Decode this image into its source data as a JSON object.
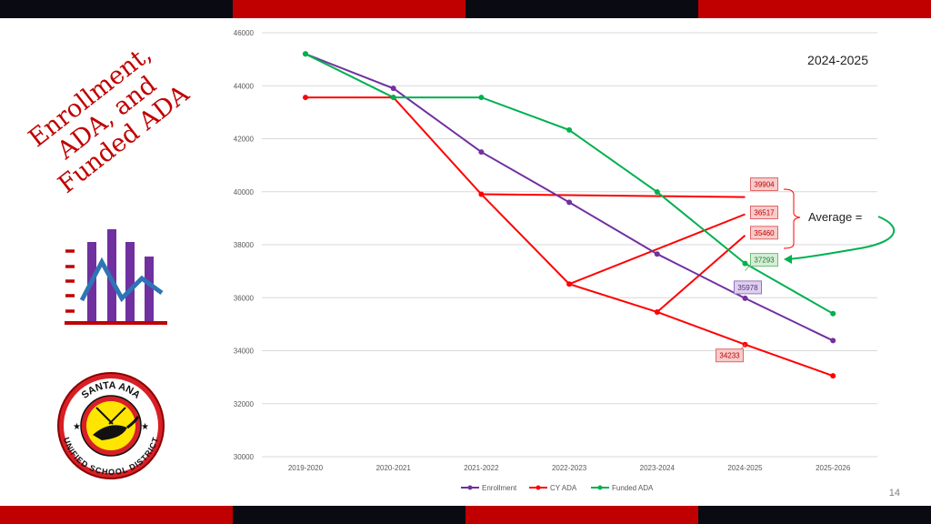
{
  "slide": {
    "title": "Enrollment,\nADA, and\nFunded ADA",
    "page_number": "14",
    "year_label": "2024-2025",
    "average_label": "Average =",
    "colors": {
      "black": "#0a0a12",
      "red": "#c00000"
    },
    "logo": {
      "name": "Santa Ana Unified School District seal",
      "top_text": "SANTA ANA",
      "bottom_text": "UNIFIED SCHOOL DISTRICT"
    }
  },
  "chart_data": {
    "type": "line",
    "categories": [
      "2019-2020",
      "2020-2021",
      "2021-2022",
      "2022-2023",
      "2023-2024",
      "2024-2025",
      "2025-2026"
    ],
    "ylim": [
      30000,
      46000
    ],
    "yticks": [
      "30000",
      "32000",
      "34000",
      "36000",
      "38000",
      "40000",
      "42000",
      "44000",
      "46000"
    ],
    "grid": true,
    "legend_position": "bottom",
    "series": [
      {
        "name": "Enrollment",
        "color": "#7030a0",
        "values": [
          45200,
          43900,
          41500,
          39600,
          37650,
          35978,
          34380
        ]
      },
      {
        "name": "CY ADA",
        "color": "#ff0000",
        "values": [
          43560,
          43560,
          39904,
          36517,
          35460,
          34233,
          33050
        ]
      },
      {
        "name": "Funded ADA",
        "color": "#00b050",
        "values": [
          45200,
          43560,
          43560,
          42330,
          39990,
          37293,
          35400
        ]
      }
    ],
    "cy_ada_projection_lines": [
      {
        "from_category": "2021-2022",
        "to_category": "2024-2025",
        "from": 39904,
        "to": 39800
      },
      {
        "from_category": "2022-2023",
        "to_category": "2024-2025",
        "from": 36517,
        "to": 39150
      },
      {
        "from_category": "2023-2024",
        "to_category": "2024-2025",
        "from": 35460,
        "to": 38350
      }
    ],
    "callouts": [
      {
        "text": "39904",
        "series": "CY ADA"
      },
      {
        "text": "36517",
        "series": "CY ADA"
      },
      {
        "text": "35460",
        "series": "CY ADA"
      },
      {
        "text": "37293",
        "series": "Funded ADA"
      },
      {
        "text": "35978",
        "series": "Enrollment"
      },
      {
        "text": "34233",
        "series": "CY ADA"
      }
    ]
  }
}
